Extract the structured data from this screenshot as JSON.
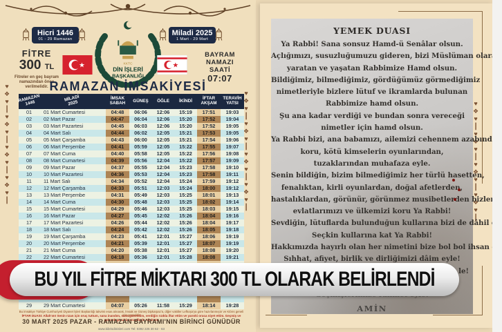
{
  "colors": {
    "page_bg": "#ead7b5",
    "poster_cream": "#f0dfbd",
    "navy": "#1b2840",
    "banner_red": "#c41f2e",
    "row_cyan": "#c9e7e9",
    "row_cream": "#edf2e3",
    "highlight_light": "#e9cfa2",
    "highlight_dark": "#ad8455",
    "ornament_brown": "#7b5233",
    "wreath_green": "#1d4a38"
  },
  "icons": {
    "ornament_chain_glyphs": [
      "♥",
      "❖",
      "♥",
      "┃"
    ],
    "lantern": "lantern-icon",
    "crescent": "crescent-icon"
  },
  "left_poster": {
    "hicri_badge": {
      "title": "Hicri 1446",
      "subtitle": "01 - 29 Ramazan"
    },
    "miladi_badge": {
      "title": "Miladi 2025",
      "subtitle": "1 Mart - 29 Mart"
    },
    "fitre": {
      "label": "FİTRE",
      "amount": "300",
      "currency": "TL",
      "note": "Fitreler en geç bayram namazından önce verilmelidir."
    },
    "bayram": {
      "line1": "BAYRAM",
      "line2": "NAMAZI",
      "line3": "SAATİ",
      "time": "07:07"
    },
    "logo": {
      "org_small": "KKTC",
      "org_line1": "DİN İŞLERİ",
      "org_line2": "BAŞKANLIĞI"
    },
    "title": "RAMAZAN İMSAKİYESİ",
    "table": {
      "headers": [
        {
          "line1": "RAMAZAN",
          "line2": "1446",
          "rot": true
        },
        {
          "line1": "MİLADİ",
          "line2": "2025",
          "rot": true
        },
        {
          "line1": "İMSAK",
          "line2": "SABAH",
          "rot": false
        },
        {
          "line1": "GÜNEŞ",
          "line2": "",
          "rot": false
        },
        {
          "line1": "ÖĞLE",
          "line2": "",
          "rot": false
        },
        {
          "line1": "İKİNDİ",
          "line2": "",
          "rot": false
        },
        {
          "line1": "İFTAR",
          "line2": "AKŞAM",
          "rot": false
        },
        {
          "line1": "TERAVİH",
          "line2": "YATSI",
          "rot": false
        }
      ],
      "rows": [
        [
          "01",
          "01 Mart Cumartesi",
          "04:48",
          "06:06",
          "12:06",
          "15:19",
          "17:51",
          "19:03"
        ],
        [
          "02",
          "02 Mart Pazar",
          "04:47",
          "06:04",
          "12:06",
          "15:20",
          "17:52",
          "19:04"
        ],
        [
          "03",
          "03 Mart Pazartesi",
          "04:45",
          "06:03",
          "12:06",
          "15:20",
          "17:52",
          "19:05"
        ],
        [
          "04",
          "04 Mart Salı",
          "04:44",
          "06:02",
          "12:05",
          "15:21",
          "17:53",
          "19:05"
        ],
        [
          "05",
          "05 Mart Çarşamba",
          "04:43",
          "06:00",
          "12:05",
          "15:21",
          "17:54",
          "19:06"
        ],
        [
          "06",
          "06 Mart Perşembe",
          "04:41",
          "05:59",
          "12:05",
          "15:22",
          "17:55",
          "19:07"
        ],
        [
          "07",
          "07 Mart Cuma",
          "04:40",
          "05:58",
          "12:05",
          "15:22",
          "17:56",
          "19:08"
        ],
        [
          "08",
          "08 Mart Cumartesi",
          "04:39",
          "05:56",
          "12:04",
          "15:22",
          "17:57",
          "19:09"
        ],
        [
          "09",
          "09 Mart Pazar",
          "04:37",
          "05:55",
          "12:04",
          "15:23",
          "17:58",
          "19:10"
        ],
        [
          "10",
          "10 Mart Pazartesi",
          "04:36",
          "05:53",
          "12:04",
          "15:23",
          "17:58",
          "19:11"
        ],
        [
          "11",
          "11 Mart Salı",
          "04:34",
          "05:52",
          "12:04",
          "15:24",
          "17:59",
          "19:12"
        ],
        [
          "12",
          "12 Mart Çarşamba",
          "04:33",
          "05:51",
          "12:03",
          "15:24",
          "18:00",
          "19:12"
        ],
        [
          "13",
          "13 Mart Perşembe",
          "04:31",
          "05:49",
          "12:03",
          "15:25",
          "18:01",
          "19:13"
        ],
        [
          "14",
          "14 Mart Cuma",
          "04:30",
          "05:48",
          "12:03",
          "15:25",
          "18:02",
          "19:14"
        ],
        [
          "15",
          "15 Mart Cumartesi",
          "04:29",
          "05:46",
          "12:03",
          "15:25",
          "18:03",
          "19:15"
        ],
        [
          "16",
          "16 Mart Pazar",
          "04:27",
          "05:45",
          "12:02",
          "15:26",
          "18:04",
          "19:16"
        ],
        [
          "17",
          "17 Mart Pazartesi",
          "04:26",
          "05:44",
          "12:02",
          "15:26",
          "18:04",
          "19:17"
        ],
        [
          "18",
          "18 Mart Salı",
          "04:24",
          "05:42",
          "12:02",
          "15:26",
          "18:05",
          "19:18"
        ],
        [
          "19",
          "19 Mart Çarşamba",
          "04:23",
          "05:41",
          "12:01",
          "15:27",
          "18:06",
          "19:19"
        ],
        [
          "20",
          "20 Mart Perşembe",
          "04:21",
          "05:39",
          "12:01",
          "15:27",
          "18:07",
          "19:19"
        ],
        [
          "21",
          "21 Mart Cuma",
          "04:20",
          "05:38",
          "12:01",
          "15:27",
          "18:08",
          "19:20"
        ],
        [
          "22",
          "22 Mart Cumartesi",
          "04:18",
          "05:36",
          "12:01",
          "15:28",
          "18:08",
          "19:21"
        ],
        [
          "",
          "",
          "",
          "",
          "",
          "",
          "",
          ""
        ],
        [
          "",
          "",
          "",
          "",
          "",
          "",
          "",
          ""
        ],
        [
          "",
          "",
          "",
          "",
          "",
          "",
          "",
          ""
        ],
        [
          "",
          "",
          "",
          "",
          "",
          "",
          "",
          ""
        ],
        [
          "",
          "",
          "",
          "",
          "",
          "",
          "",
          ""
        ],
        [
          "",
          "",
          "",
          "",
          "",
          "",
          "",
          ""
        ],
        [
          "29",
          "29 Mart Cumartesi",
          "04:07",
          "05:26",
          "11:58",
          "15:29",
          "18:14",
          "19:28"
        ]
      ]
    },
    "footnote": "Bu imsakiye Türkiye Cumhuriyeti Diyanet İşleri Başkanlığı takvimi esas alınarak, İmsak ve Güneş Dipkarpaz'a, diğer vakitler Lefkoşa'ya göre hazırlanmıştır ve Kıbrıs geneli için geçerlidir",
    "iftar_duasi": "İFTAR DUASI: Allah'ım! Senin rızan için oruç tuttum, sana inandım, sana güvendim, verdiğin rızıkla iftar ettim ve yarınki oruca niyet ettim. Geçmiş ve gelecek günahlarımı affeyle Allah'ım!",
    "bayram_note": "30 MART 2025 PAZAR - RAMAZAN BAYRAMI'NIN BİRİNCİ GÜNÜDÜR",
    "contact": "www.kibrisdinisleri.com      Tel: 0392 225 30 62 - 63"
  },
  "banner": {
    "text": "BU YIL FİTRE MİKTARI 300 TL OLARAK BELİRLENDİ"
  },
  "right_poster": {
    "title": "YEMEK DUASI",
    "lines": [
      "Ya Rabbi! Sana sonsuz Hamd-ü Senâlar olsun.",
      "Açlığımızı, susuzluğumuzu gideren, bizi Müslüman olarak",
      "yaratan ve yaşatan Rabbimize Hamd olsun.",
      "Bildiğimiz, bilmediğimiz, gördüğümüz görmediğimiz",
      "nimetleriyle bizlere lütuf ve ikramlarda bulunan",
      "Rabbimize hamd olsun.",
      "Şu ana kadar verdiği ve bundan sonra vereceği",
      "nimetler için hamd olsun.",
      "Ya Rabbi bizi, ana babamızı, ailemizi cehennem azabından",
      "koru, kötü kimselerin oyunlarından,",
      "tuzaklarından muhafaza eyle.",
      "Senin bildiğin, bizim bilmediğimiz her türlü hasetten,",
      "fenalıktan, kirli oyunlardan, doğal afetlerden,",
      "hastalıklardan, görünür, görünmez musibetlerden bizleri,",
      "evlatlarımızı ve ülkemizi koru Ya Rabbi!",
      "Sevdiğin, lütuflarda bulunduğun kullarına bizi de dâhil eyle!",
      "Seçkin kullarına kat Ya Rabbi!",
      "Hakkımızda hayırlı olan her nimetini bize bol bol ihsan eyle!",
      "Sıhhat, afiyet, birlik ve dirliğimizi dâim eyle!"
    ],
    "covered_fragment": "le!",
    "closing_line": "Geçmişlerimize rahmet eyle!",
    "amin": "AMİN"
  }
}
